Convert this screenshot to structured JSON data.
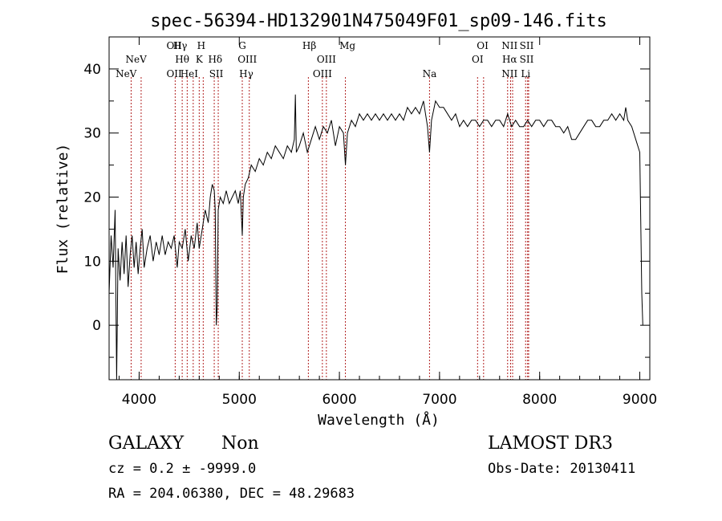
{
  "chart_data": {
    "type": "line",
    "title": "spec-56394-HD132901N475049F01_sp09-146.fits",
    "xlabel": "Wavelength (Å)",
    "ylabel": "Flux (relative)",
    "xlim": [
      3700,
      9100
    ],
    "ylim": [
      -8.5,
      45
    ],
    "xticks": [
      4000,
      5000,
      6000,
      7000,
      8000,
      9000
    ],
    "yticks": [
      0,
      10,
      20,
      30,
      40
    ],
    "line_color": "#000000",
    "marker_color": "#b22222",
    "spectrum": [
      [
        3700,
        5
      ],
      [
        3720,
        14
      ],
      [
        3740,
        9
      ],
      [
        3760,
        18
      ],
      [
        3775,
        -8.5
      ],
      [
        3790,
        12
      ],
      [
        3810,
        7
      ],
      [
        3830,
        13
      ],
      [
        3850,
        8
      ],
      [
        3870,
        14
      ],
      [
        3890,
        6
      ],
      [
        3910,
        11
      ],
      [
        3930,
        14
      ],
      [
        3950,
        9
      ],
      [
        3970,
        13
      ],
      [
        3990,
        8
      ],
      [
        4010,
        12
      ],
      [
        4030,
        15
      ],
      [
        4050,
        9
      ],
      [
        4080,
        12
      ],
      [
        4110,
        14
      ],
      [
        4140,
        10
      ],
      [
        4170,
        13
      ],
      [
        4200,
        11
      ],
      [
        4230,
        14
      ],
      [
        4260,
        11
      ],
      [
        4290,
        13
      ],
      [
        4320,
        12
      ],
      [
        4350,
        14
      ],
      [
        4380,
        9
      ],
      [
        4400,
        13
      ],
      [
        4430,
        12
      ],
      [
        4460,
        15
      ],
      [
        4490,
        10
      ],
      [
        4520,
        14
      ],
      [
        4550,
        12
      ],
      [
        4580,
        16
      ],
      [
        4600,
        12
      ],
      [
        4630,
        15
      ],
      [
        4660,
        18
      ],
      [
        4690,
        16
      ],
      [
        4710,
        20
      ],
      [
        4730,
        22
      ],
      [
        4750,
        21
      ],
      [
        4760,
        18
      ],
      [
        4770,
        0
      ],
      [
        4780,
        3
      ],
      [
        4790,
        18
      ],
      [
        4810,
        20
      ],
      [
        4840,
        19
      ],
      [
        4870,
        21
      ],
      [
        4900,
        19
      ],
      [
        4930,
        20
      ],
      [
        4960,
        21
      ],
      [
        4990,
        19
      ],
      [
        5010,
        21
      ],
      [
        5030,
        14
      ],
      [
        5040,
        20
      ],
      [
        5060,
        22
      ],
      [
        5090,
        23
      ],
      [
        5120,
        25
      ],
      [
        5160,
        24
      ],
      [
        5200,
        26
      ],
      [
        5240,
        25
      ],
      [
        5280,
        27
      ],
      [
        5320,
        26
      ],
      [
        5360,
        28
      ],
      [
        5400,
        27
      ],
      [
        5440,
        26
      ],
      [
        5480,
        28
      ],
      [
        5520,
        27
      ],
      [
        5550,
        29
      ],
      [
        5560,
        36
      ],
      [
        5570,
        27
      ],
      [
        5600,
        28
      ],
      [
        5640,
        30
      ],
      [
        5680,
        27
      ],
      [
        5720,
        29
      ],
      [
        5760,
        31
      ],
      [
        5800,
        29
      ],
      [
        5840,
        31
      ],
      [
        5880,
        30
      ],
      [
        5920,
        32
      ],
      [
        5960,
        28
      ],
      [
        6000,
        31
      ],
      [
        6040,
        30
      ],
      [
        6060,
        25
      ],
      [
        6080,
        30
      ],
      [
        6120,
        32
      ],
      [
        6160,
        31
      ],
      [
        6200,
        33
      ],
      [
        6240,
        32
      ],
      [
        6280,
        33
      ],
      [
        6320,
        32
      ],
      [
        6360,
        33
      ],
      [
        6400,
        32
      ],
      [
        6440,
        33
      ],
      [
        6480,
        32
      ],
      [
        6520,
        33
      ],
      [
        6560,
        32
      ],
      [
        6600,
        33
      ],
      [
        6640,
        32
      ],
      [
        6680,
        34
      ],
      [
        6720,
        33
      ],
      [
        6760,
        34
      ],
      [
        6800,
        33
      ],
      [
        6840,
        35
      ],
      [
        6880,
        31
      ],
      [
        6900,
        27
      ],
      [
        6920,
        32
      ],
      [
        6960,
        35
      ],
      [
        7000,
        34
      ],
      [
        7040,
        34
      ],
      [
        7080,
        33
      ],
      [
        7120,
        32
      ],
      [
        7160,
        33
      ],
      [
        7200,
        31
      ],
      [
        7240,
        32
      ],
      [
        7280,
        31
      ],
      [
        7320,
        32
      ],
      [
        7360,
        32
      ],
      [
        7400,
        31
      ],
      [
        7440,
        32
      ],
      [
        7480,
        32
      ],
      [
        7520,
        31
      ],
      [
        7560,
        32
      ],
      [
        7600,
        32
      ],
      [
        7640,
        31
      ],
      [
        7680,
        33
      ],
      [
        7720,
        31
      ],
      [
        7760,
        32
      ],
      [
        7800,
        31
      ],
      [
        7840,
        31
      ],
      [
        7880,
        32
      ],
      [
        7920,
        31
      ],
      [
        7960,
        32
      ],
      [
        8000,
        32
      ],
      [
        8040,
        31
      ],
      [
        8080,
        32
      ],
      [
        8120,
        32
      ],
      [
        8160,
        31
      ],
      [
        8200,
        31
      ],
      [
        8240,
        30
      ],
      [
        8280,
        31
      ],
      [
        8320,
        29
      ],
      [
        8360,
        29
      ],
      [
        8400,
        30
      ],
      [
        8440,
        31
      ],
      [
        8480,
        32
      ],
      [
        8520,
        32
      ],
      [
        8560,
        31
      ],
      [
        8600,
        31
      ],
      [
        8640,
        32
      ],
      [
        8680,
        32
      ],
      [
        8720,
        33
      ],
      [
        8760,
        32
      ],
      [
        8800,
        33
      ],
      [
        8840,
        32
      ],
      [
        8860,
        34
      ],
      [
        8880,
        32
      ],
      [
        8920,
        31
      ],
      [
        8960,
        29
      ],
      [
        9000,
        27
      ],
      [
        9020,
        5
      ],
      [
        9030,
        0
      ]
    ],
    "line_markers": [
      {
        "label": "NeV",
        "x": 3870,
        "row": 2
      },
      {
        "label": "NeV",
        "x": 3970,
        "row": 1
      },
      {
        "label": "OII",
        "x": 4350,
        "row": 0
      },
      {
        "label": "OII",
        "x": 4350,
        "row": 2
      },
      {
        "label": "Hγ",
        "x": 4410,
        "row": 0
      },
      {
        "label": "Hθ",
        "x": 4430,
        "row": 1
      },
      {
        "label": "HeI",
        "x": 4500,
        "row": 2
      },
      {
        "label": "H",
        "x": 4620,
        "row": 0
      },
      {
        "label": "K",
        "x": 4600,
        "row": 1
      },
      {
        "label": "Hδ",
        "x": 4760,
        "row": 1
      },
      {
        "label": "SII",
        "x": 4770,
        "row": 2
      },
      {
        "label": "G",
        "x": 5030,
        "row": 0
      },
      {
        "label": "OIII",
        "x": 5080,
        "row": 1
      },
      {
        "label": "Hγ",
        "x": 5070,
        "row": 2
      },
      {
        "label": "Hβ",
        "x": 5700,
        "row": 0
      },
      {
        "label": "OIII",
        "x": 5870,
        "row": 1
      },
      {
        "label": "OIII",
        "x": 5830,
        "row": 2
      },
      {
        "label": "Mg",
        "x": 6080,
        "row": 0
      },
      {
        "label": "Na",
        "x": 6900,
        "row": 2
      },
      {
        "label": "OI",
        "x": 7430,
        "row": 0
      },
      {
        "label": "OI",
        "x": 7380,
        "row": 1
      },
      {
        "label": "NII",
        "x": 7700,
        "row": 0
      },
      {
        "label": "Hα",
        "x": 7700,
        "row": 1
      },
      {
        "label": "NII",
        "x": 7700,
        "row": 2
      },
      {
        "label": "SII",
        "x": 7870,
        "row": 0
      },
      {
        "label": "SII",
        "x": 7870,
        "row": 1
      },
      {
        "label": "Li",
        "x": 7860,
        "row": 2
      }
    ],
    "marker_lines_x": [
      3920,
      4020,
      4360,
      4430,
      4480,
      4540,
      4600,
      4640,
      4750,
      4790,
      5030,
      5100,
      5690,
      5830,
      5870,
      6060,
      6900,
      7380,
      7440,
      7680,
      7710,
      7730,
      7860,
      7880,
      7890
    ]
  },
  "info": {
    "object_class": "GALAXY",
    "subclass": "Non",
    "survey": "LAMOST DR3",
    "cz": "cz = 0.2 ± -9999.0",
    "obs_date": "Obs-Date: 20130411",
    "coords": "RA = 204.06380, DEC =  48.29683"
  }
}
